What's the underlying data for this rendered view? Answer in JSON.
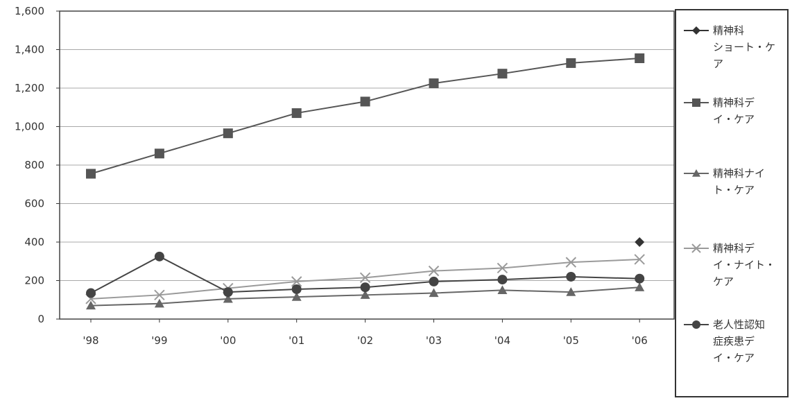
{
  "chart_data": {
    "type": "line",
    "title": "",
    "xlabel": "",
    "ylabel": "",
    "categories": [
      "'98",
      "'99",
      "'00",
      "'01",
      "'02",
      "'03",
      "'04",
      "'05",
      "'06"
    ],
    "ylim": [
      0,
      1600
    ],
    "yticks": [
      0,
      200,
      400,
      600,
      800,
      1000,
      1200,
      1400,
      1600
    ],
    "ytick_labels": [
      "0",
      "200",
      "400",
      "600",
      "800",
      "1,000",
      "1,200",
      "1,400",
      "1,600"
    ],
    "grid": "horizontal",
    "legend_position": "right",
    "series": [
      {
        "name": "精神科ショート・ケア",
        "legend_lines": [
          "精神科",
          "ショート・ケ",
          "ア"
        ],
        "marker": "diamond",
        "color": "#333333",
        "values": [
          null,
          null,
          null,
          null,
          null,
          null,
          null,
          null,
          400
        ]
      },
      {
        "name": "精神科デイ・ケア",
        "legend_lines": [
          "精神科デ",
          "イ・ケア"
        ],
        "marker": "square",
        "color": "#555555",
        "values": [
          755,
          860,
          965,
          1070,
          1130,
          1225,
          1275,
          1330,
          1355
        ]
      },
      {
        "name": "精神科ナイト・ケア",
        "legend_lines": [
          "精神科ナイ",
          "ト・ケア"
        ],
        "marker": "triangle",
        "color": "#666666",
        "values": [
          70,
          80,
          105,
          115,
          125,
          135,
          150,
          140,
          165
        ]
      },
      {
        "name": "精神科デイ・ナイト・ケア",
        "legend_lines": [
          "精神科デ",
          "イ・ナイト・",
          "ケア"
        ],
        "marker": "x",
        "color": "#9a9a9a",
        "values": [
          105,
          125,
          160,
          195,
          215,
          250,
          265,
          295,
          310
        ]
      },
      {
        "name": "老人性認知症疾患デイ・ケア",
        "legend_lines": [
          "老人性認知",
          "症疾患デ",
          "イ・ケア"
        ],
        "marker": "circle",
        "color": "#444444",
        "values": [
          135,
          325,
          140,
          155,
          165,
          195,
          205,
          220,
          210
        ]
      }
    ]
  }
}
